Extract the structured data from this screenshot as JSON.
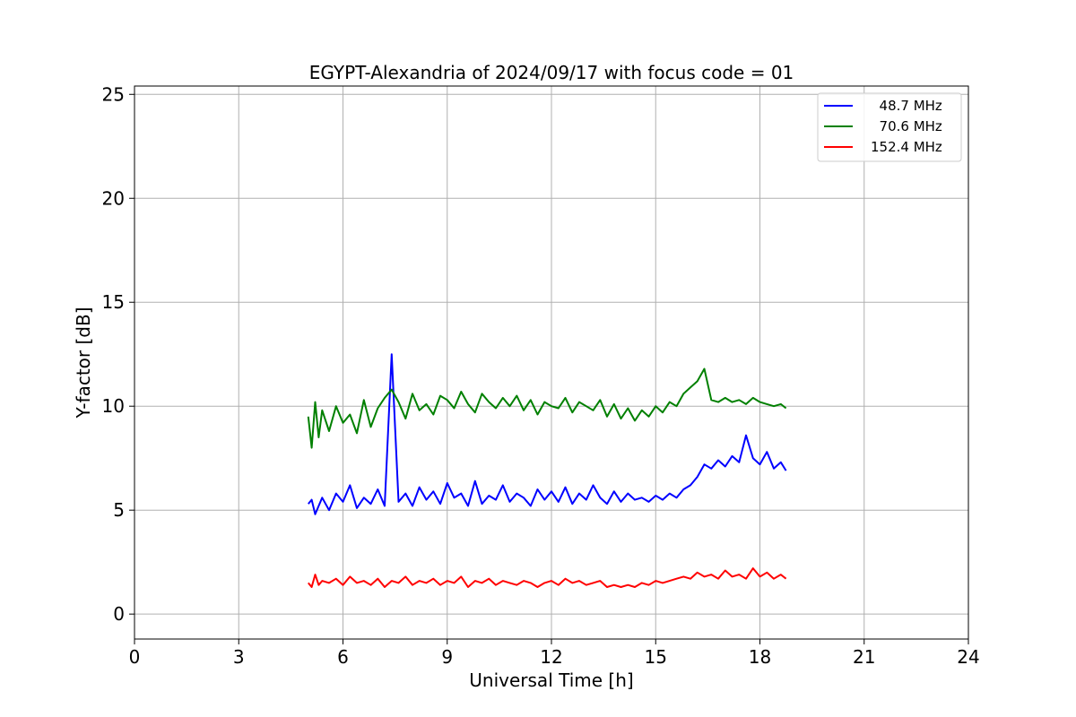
{
  "chart_data": {
    "type": "line",
    "title": "EGYPT-Alexandria of 2024/09/17 with focus code = 01",
    "xlabel": "Universal Time [h]",
    "ylabel": "Y-factor [dB]",
    "xlim": [
      0,
      24
    ],
    "ylim": [
      -1.2,
      25.4
    ],
    "xticks": [
      0,
      3,
      6,
      9,
      12,
      15,
      18,
      21,
      24
    ],
    "xtick_labels": [
      "0",
      "3",
      "6",
      "9",
      "12",
      "15",
      "18",
      "21",
      "24"
    ],
    "yticks": [
      0,
      5,
      10,
      15,
      20,
      25
    ],
    "ytick_labels": [
      "0",
      "5",
      "10",
      "15",
      "20",
      "25"
    ],
    "grid": true,
    "legend_position": "top-right",
    "series": [
      {
        "name": "  48.7 MHz",
        "color": "#0000ff",
        "x": [
          5.0,
          5.1,
          5.2,
          5.3,
          5.4,
          5.6,
          5.8,
          6.0,
          6.2,
          6.4,
          6.6,
          6.8,
          7.0,
          7.2,
          7.4,
          7.6,
          7.8,
          8.0,
          8.2,
          8.4,
          8.6,
          8.8,
          9.0,
          9.2,
          9.4,
          9.6,
          9.8,
          10.0,
          10.2,
          10.4,
          10.6,
          10.8,
          11.0,
          11.2,
          11.4,
          11.6,
          11.8,
          12.0,
          12.2,
          12.4,
          12.6,
          12.8,
          13.0,
          13.2,
          13.4,
          13.6,
          13.8,
          14.0,
          14.2,
          14.4,
          14.6,
          14.8,
          15.0,
          15.2,
          15.4,
          15.6,
          15.8,
          16.0,
          16.2,
          16.4,
          16.6,
          16.8,
          17.0,
          17.2,
          17.4,
          17.6,
          17.8,
          18.0,
          18.2,
          18.4,
          18.6,
          18.75
        ],
        "y": [
          5.3,
          5.5,
          4.8,
          5.2,
          5.6,
          5.0,
          5.8,
          5.4,
          6.2,
          5.1,
          5.6,
          5.3,
          6.0,
          5.2,
          12.5,
          5.4,
          5.8,
          5.2,
          6.1,
          5.5,
          5.9,
          5.3,
          6.3,
          5.6,
          5.8,
          5.2,
          6.4,
          5.3,
          5.7,
          5.5,
          6.2,
          5.4,
          5.8,
          5.6,
          5.2,
          6.0,
          5.5,
          5.9,
          5.4,
          6.1,
          5.3,
          5.8,
          5.5,
          6.2,
          5.6,
          5.3,
          5.9,
          5.4,
          5.8,
          5.5,
          5.6,
          5.4,
          5.7,
          5.5,
          5.8,
          5.6,
          6.0,
          6.2,
          6.6,
          7.2,
          7.0,
          7.4,
          7.1,
          7.6,
          7.3,
          8.6,
          7.5,
          7.2,
          7.8,
          7.0,
          7.3,
          6.9
        ]
      },
      {
        "name": "  70.6 MHz",
        "color": "#008000",
        "x": [
          5.0,
          5.1,
          5.2,
          5.3,
          5.4,
          5.6,
          5.8,
          6.0,
          6.2,
          6.4,
          6.6,
          6.8,
          7.0,
          7.2,
          7.4,
          7.6,
          7.8,
          8.0,
          8.2,
          8.4,
          8.6,
          8.8,
          9.0,
          9.2,
          9.4,
          9.6,
          9.8,
          10.0,
          10.2,
          10.4,
          10.6,
          10.8,
          11.0,
          11.2,
          11.4,
          11.6,
          11.8,
          12.0,
          12.2,
          12.4,
          12.6,
          12.8,
          13.0,
          13.2,
          13.4,
          13.6,
          13.8,
          14.0,
          14.2,
          14.4,
          14.6,
          14.8,
          15.0,
          15.2,
          15.4,
          15.6,
          15.8,
          16.0,
          16.2,
          16.4,
          16.6,
          16.8,
          17.0,
          17.2,
          17.4,
          17.6,
          17.8,
          18.0,
          18.2,
          18.4,
          18.6,
          18.75
        ],
        "y": [
          9.5,
          8.0,
          10.2,
          8.5,
          9.8,
          8.8,
          10.0,
          9.2,
          9.6,
          8.7,
          10.3,
          9.0,
          9.9,
          10.4,
          10.8,
          10.2,
          9.4,
          10.6,
          9.8,
          10.1,
          9.6,
          10.5,
          10.3,
          9.9,
          10.7,
          10.1,
          9.7,
          10.6,
          10.2,
          9.9,
          10.4,
          10.0,
          10.5,
          9.8,
          10.3,
          9.6,
          10.2,
          10.0,
          9.9,
          10.4,
          9.7,
          10.2,
          10.0,
          9.8,
          10.3,
          9.5,
          10.1,
          9.4,
          9.9,
          9.3,
          9.8,
          9.5,
          10.0,
          9.7,
          10.2,
          10.0,
          10.6,
          10.9,
          11.2,
          11.8,
          10.3,
          10.2,
          10.4,
          10.2,
          10.3,
          10.1,
          10.4,
          10.2,
          10.1,
          10.0,
          10.1,
          9.9
        ]
      },
      {
        "name": "152.4 MHz",
        "color": "#ff0000",
        "x": [
          5.0,
          5.1,
          5.2,
          5.3,
          5.4,
          5.6,
          5.8,
          6.0,
          6.2,
          6.4,
          6.6,
          6.8,
          7.0,
          7.2,
          7.4,
          7.6,
          7.8,
          8.0,
          8.2,
          8.4,
          8.6,
          8.8,
          9.0,
          9.2,
          9.4,
          9.6,
          9.8,
          10.0,
          10.2,
          10.4,
          10.6,
          10.8,
          11.0,
          11.2,
          11.4,
          11.6,
          11.8,
          12.0,
          12.2,
          12.4,
          12.6,
          12.8,
          13.0,
          13.2,
          13.4,
          13.6,
          13.8,
          14.0,
          14.2,
          14.4,
          14.6,
          14.8,
          15.0,
          15.2,
          15.4,
          15.6,
          15.8,
          16.0,
          16.2,
          16.4,
          16.6,
          16.8,
          17.0,
          17.2,
          17.4,
          17.6,
          17.8,
          18.0,
          18.2,
          18.4,
          18.6,
          18.75
        ],
        "y": [
          1.5,
          1.3,
          1.9,
          1.4,
          1.6,
          1.5,
          1.7,
          1.4,
          1.8,
          1.5,
          1.6,
          1.4,
          1.7,
          1.3,
          1.6,
          1.5,
          1.8,
          1.4,
          1.6,
          1.5,
          1.7,
          1.4,
          1.6,
          1.5,
          1.8,
          1.3,
          1.6,
          1.5,
          1.7,
          1.4,
          1.6,
          1.5,
          1.4,
          1.6,
          1.5,
          1.3,
          1.5,
          1.6,
          1.4,
          1.7,
          1.5,
          1.6,
          1.4,
          1.5,
          1.6,
          1.3,
          1.4,
          1.3,
          1.4,
          1.3,
          1.5,
          1.4,
          1.6,
          1.5,
          1.6,
          1.7,
          1.8,
          1.7,
          2.0,
          1.8,
          1.9,
          1.7,
          2.1,
          1.8,
          1.9,
          1.7,
          2.2,
          1.8,
          2.0,
          1.7,
          1.9,
          1.7
        ]
      }
    ]
  }
}
